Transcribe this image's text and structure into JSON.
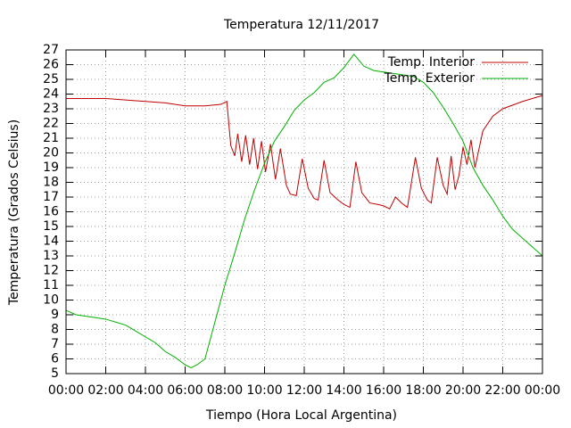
{
  "chart_data": {
    "type": "line",
    "title": "Temperatura 12/11/2017",
    "xlabel": "Tiempo (Hora Local Argentina)",
    "ylabel": "Temperatura (Grados Celsius)",
    "xlim": [
      0,
      24
    ],
    "xticks": [
      {
        "value": 0,
        "label": "00:00"
      },
      {
        "value": 2,
        "label": "02:00"
      },
      {
        "value": 4,
        "label": "04:00"
      },
      {
        "value": 6,
        "label": "06:00"
      },
      {
        "value": 8,
        "label": "08:00"
      },
      {
        "value": 10,
        "label": "10:00"
      },
      {
        "value": 12,
        "label": "12:00"
      },
      {
        "value": 14,
        "label": "14:00"
      },
      {
        "value": 16,
        "label": "16:00"
      },
      {
        "value": 18,
        "label": "18:00"
      },
      {
        "value": 20,
        "label": "20:00"
      },
      {
        "value": 22,
        "label": "22:00"
      },
      {
        "value": 24,
        "label": "00:00"
      }
    ],
    "ylim": [
      5,
      27
    ],
    "yticks": [
      5,
      6,
      7,
      8,
      9,
      10,
      11,
      12,
      13,
      14,
      15,
      16,
      17,
      18,
      19,
      20,
      21,
      22,
      23,
      24,
      25,
      26,
      27
    ],
    "grid": true,
    "legend": "top-right",
    "series": [
      {
        "name": "Temp. Interior",
        "color": "#c00000",
        "x": [
          0,
          2,
          3,
          4,
          5,
          6,
          7,
          7.8,
          8.1,
          8.3,
          8.5,
          8.65,
          8.85,
          9.05,
          9.25,
          9.45,
          9.65,
          9.85,
          10.05,
          10.3,
          10.55,
          10.8,
          11.1,
          11.3,
          11.6,
          11.9,
          12.2,
          12.5,
          12.7,
          13.0,
          13.3,
          13.7,
          14.0,
          14.3,
          14.6,
          14.9,
          15.3,
          15.7,
          16.0,
          16.3,
          16.6,
          16.9,
          17.2,
          17.6,
          17.9,
          18.2,
          18.4,
          18.7,
          19.0,
          19.2,
          19.4,
          19.6,
          19.8,
          20.0,
          20.2,
          20.4,
          20.6,
          21.0,
          21.5,
          22.0,
          23.0,
          24
        ],
        "values": [
          23.7,
          23.7,
          23.6,
          23.5,
          23.4,
          23.2,
          23.2,
          23.3,
          23.5,
          20.5,
          19.8,
          21.3,
          19.4,
          21.2,
          19.2,
          21.0,
          18.9,
          20.8,
          18.7,
          20.6,
          18.2,
          20.3,
          17.8,
          17.2,
          17.1,
          19.6,
          17.6,
          16.9,
          16.8,
          19.5,
          17.3,
          16.8,
          16.5,
          16.3,
          19.4,
          17.3,
          16.6,
          16.5,
          16.4,
          16.2,
          17.0,
          16.6,
          16.3,
          19.7,
          17.6,
          16.8,
          16.6,
          19.7,
          17.8,
          17.2,
          19.8,
          17.5,
          18.5,
          20.4,
          19.2,
          20.9,
          19.0,
          21.5,
          22.5,
          23.0,
          23.5,
          23.9
        ]
      },
      {
        "name": "Temp. Exterior",
        "color": "#00b000",
        "x": [
          0,
          0.5,
          1,
          1.5,
          2,
          2.5,
          3,
          3.5,
          4,
          4.5,
          5,
          5.5,
          6,
          6.3,
          6.6,
          7,
          7.5,
          8,
          8.5,
          9,
          9.5,
          10,
          10.5,
          11,
          11.5,
          12,
          12.5,
          13,
          13.5,
          14,
          14.5,
          14.7,
          15,
          15.5,
          16,
          16.5,
          17,
          17.5,
          18,
          18.5,
          19,
          19.5,
          20,
          20.5,
          21,
          21.5,
          22,
          22.5,
          23,
          23.5,
          24
        ],
        "values": [
          9.3,
          9.0,
          8.9,
          8.8,
          8.7,
          8.5,
          8.3,
          7.9,
          7.5,
          7.1,
          6.5,
          6.1,
          5.6,
          5.4,
          5.6,
          6.0,
          8.5,
          11.0,
          13.2,
          15.5,
          17.5,
          19.3,
          20.8,
          21.8,
          22.9,
          23.6,
          24.1,
          24.8,
          25.1,
          25.8,
          26.7,
          26.4,
          25.9,
          25.6,
          25.5,
          25.4,
          25.3,
          25.2,
          24.8,
          24.1,
          23.1,
          22.0,
          20.8,
          19.0,
          17.8,
          16.8,
          15.7,
          14.8,
          14.2,
          13.6,
          13.0
        ]
      }
    ]
  }
}
